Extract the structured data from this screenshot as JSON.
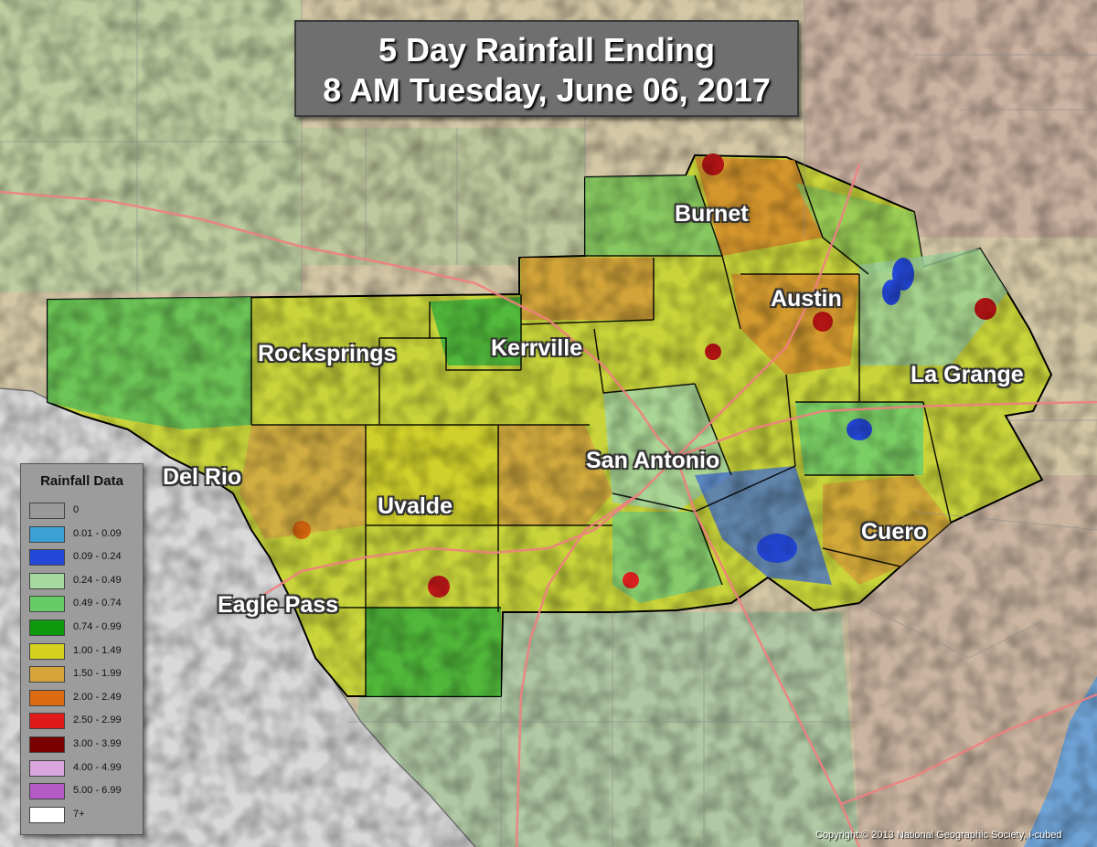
{
  "title": {
    "line1": "5 Day Rainfall Ending",
    "line2": "8 AM Tuesday, June 06, 2017"
  },
  "cities": [
    {
      "name": "Burnet"
    },
    {
      "name": "Austin"
    },
    {
      "name": "Rocksprings"
    },
    {
      "name": "Kerrville"
    },
    {
      "name": "La Grange"
    },
    {
      "name": "San Antonio"
    },
    {
      "name": "Del Rio"
    },
    {
      "name": "Uvalde"
    },
    {
      "name": "Cuero"
    },
    {
      "name": "Eagle Pass"
    }
  ],
  "legend": {
    "title": "Rainfall Data",
    "items": [
      {
        "label": "0",
        "color": "#999999"
      },
      {
        "label": "0.01 - 0.09",
        "color": "#3aa0d6"
      },
      {
        "label": "0.09 - 0.24",
        "color": "#2448d8"
      },
      {
        "label": "0.24 - 0.49",
        "color": "#a6d9a0"
      },
      {
        "label": "0.49 - 0.74",
        "color": "#66cc66"
      },
      {
        "label": "0.74 - 0.99",
        "color": "#0c9a0c"
      },
      {
        "label": "1.00 - 1.49",
        "color": "#d4d21e"
      },
      {
        "label": "1.50 - 1.99",
        "color": "#d4a33a"
      },
      {
        "label": "2.00 - 2.49",
        "color": "#dc6a10"
      },
      {
        "label": "2.50 - 2.99",
        "color": "#e01a1a"
      },
      {
        "label": "3.00 - 3.99",
        "color": "#7a0000"
      },
      {
        "label": "4.00 - 4.99",
        "color": "#d8a6dc"
      },
      {
        "label": "5.00 - 6.99",
        "color": "#b45ac4"
      },
      {
        "label": "7+",
        "color": "#ffffff"
      }
    ]
  },
  "copyright": "Copyright:© 2013 National Geographic Society, i-cubed"
}
